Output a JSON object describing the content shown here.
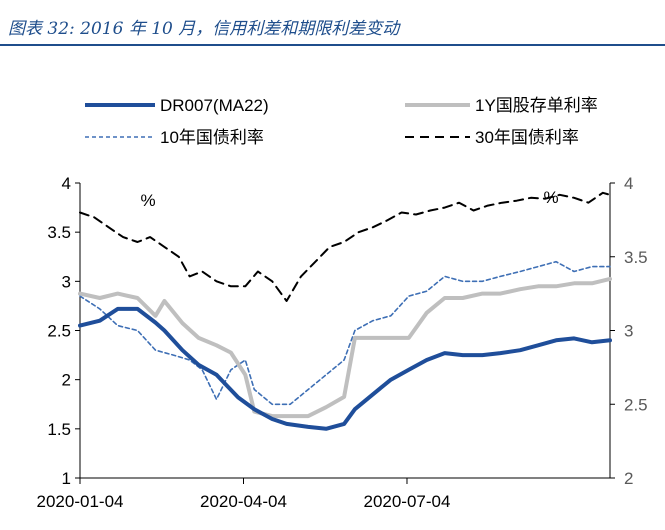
{
  "figure_title": "图表 32: 2016 年 10 月，信用利差和期限利差变动",
  "chart_data": {
    "type": "line",
    "x_tick_labels": [
      "2020-01-04",
      "2020-04-04",
      "2020-07-04"
    ],
    "y_left": {
      "range": [
        1,
        4
      ],
      "ticks": [
        "1",
        "1.5",
        "2",
        "2.5",
        "3",
        "3.5",
        "4"
      ],
      "unit_label": "%"
    },
    "y_right": {
      "range": [
        2,
        4
      ],
      "ticks": [
        "2",
        "2.5",
        "3",
        "3.5",
        "4"
      ],
      "unit_label": "%"
    },
    "grid": false,
    "legend_position": "top",
    "x_range": [
      "2020-01-04",
      "2020-10-25"
    ],
    "series": [
      {
        "name": "DR007(MA22)",
        "axis": "left",
        "style": "solid-thick",
        "color": "#1f4e9a",
        "x": [
          "2020-01-04",
          "2020-01-15",
          "2020-01-25",
          "2020-02-05",
          "2020-02-15",
          "2020-02-20",
          "2020-03-01",
          "2020-03-10",
          "2020-03-20",
          "2020-04-01",
          "2020-04-10",
          "2020-04-20",
          "2020-04-28",
          "2020-05-10",
          "2020-05-20",
          "2020-05-30",
          "2020-06-05",
          "2020-06-15",
          "2020-06-25",
          "2020-07-05",
          "2020-07-15",
          "2020-07-25",
          "2020-08-04",
          "2020-08-15",
          "2020-08-25",
          "2020-09-05",
          "2020-09-15",
          "2020-09-25",
          "2020-10-05",
          "2020-10-15",
          "2020-10-25"
        ],
        "y": [
          2.55,
          2.6,
          2.72,
          2.72,
          2.58,
          2.5,
          2.3,
          2.15,
          2.05,
          1.82,
          1.7,
          1.6,
          1.55,
          1.52,
          1.5,
          1.55,
          1.7,
          1.85,
          2.0,
          2.1,
          2.2,
          2.27,
          2.25,
          2.25,
          2.27,
          2.3,
          2.35,
          2.4,
          2.42,
          2.38,
          2.4
        ]
      },
      {
        "name": "1Y国股存单利率",
        "axis": "right",
        "style": "solid-thick",
        "color": "#bfbfbf",
        "x": [
          "2020-01-04",
          "2020-01-15",
          "2020-01-25",
          "2020-02-05",
          "2020-02-15",
          "2020-02-20",
          "2020-03-01",
          "2020-03-10",
          "2020-03-20",
          "2020-03-28",
          "2020-04-05",
          "2020-04-10",
          "2020-04-20",
          "2020-04-30",
          "2020-05-10",
          "2020-05-20",
          "2020-05-30",
          "2020-06-05",
          "2020-06-15",
          "2020-06-25",
          "2020-07-05",
          "2020-07-15",
          "2020-07-25",
          "2020-08-04",
          "2020-08-15",
          "2020-08-25",
          "2020-09-05",
          "2020-09-15",
          "2020-09-25",
          "2020-10-05",
          "2020-10-15",
          "2020-10-25"
        ],
        "y": [
          3.25,
          3.22,
          3.25,
          3.22,
          3.1,
          3.2,
          3.05,
          2.95,
          2.9,
          2.85,
          2.7,
          2.45,
          2.42,
          2.42,
          2.42,
          2.48,
          2.55,
          2.95,
          2.95,
          2.95,
          2.95,
          3.12,
          3.22,
          3.22,
          3.25,
          3.25,
          3.28,
          3.3,
          3.3,
          3.32,
          3.32,
          3.35
        ]
      },
      {
        "name": "10年国债利率",
        "axis": "left",
        "style": "dashed-thin",
        "color": "#3e6fb5",
        "x": [
          "2020-01-04",
          "2020-01-15",
          "2020-01-25",
          "2020-02-05",
          "2020-02-15",
          "2020-02-25",
          "2020-03-05",
          "2020-03-12",
          "2020-03-20",
          "2020-03-28",
          "2020-04-05",
          "2020-04-10",
          "2020-04-20",
          "2020-04-30",
          "2020-05-10",
          "2020-05-20",
          "2020-05-30",
          "2020-06-05",
          "2020-06-15",
          "2020-06-25",
          "2020-07-05",
          "2020-07-15",
          "2020-07-25",
          "2020-08-04",
          "2020-08-15",
          "2020-08-25",
          "2020-09-05",
          "2020-09-15",
          "2020-09-25",
          "2020-10-05",
          "2020-10-15",
          "2020-10-25"
        ],
        "y": [
          2.85,
          2.72,
          2.55,
          2.5,
          2.3,
          2.25,
          2.2,
          2.1,
          1.8,
          2.1,
          2.2,
          1.9,
          1.75,
          1.75,
          1.9,
          2.05,
          2.2,
          2.5,
          2.6,
          2.65,
          2.85,
          2.9,
          3.05,
          3.0,
          3.0,
          3.05,
          3.1,
          3.15,
          3.2,
          3.1,
          3.15,
          3.15
        ]
      },
      {
        "name": "30年国债利率",
        "axis": "left",
        "style": "dashed-black",
        "color": "#000000",
        "x": [
          "2020-01-04",
          "2020-01-12",
          "2020-01-20",
          "2020-01-28",
          "2020-02-05",
          "2020-02-12",
          "2020-02-20",
          "2020-02-28",
          "2020-03-05",
          "2020-03-12",
          "2020-03-20",
          "2020-03-28",
          "2020-04-05",
          "2020-04-12",
          "2020-04-20",
          "2020-04-28",
          "2020-05-06",
          "2020-05-14",
          "2020-05-22",
          "2020-05-30",
          "2020-06-07",
          "2020-06-15",
          "2020-06-23",
          "2020-07-01",
          "2020-07-09",
          "2020-07-17",
          "2020-07-25",
          "2020-08-02",
          "2020-08-10",
          "2020-08-18",
          "2020-08-26",
          "2020-09-03",
          "2020-09-11",
          "2020-09-19",
          "2020-09-27",
          "2020-10-05",
          "2020-10-13",
          "2020-10-21",
          "2020-10-25"
        ],
        "y": [
          3.7,
          3.65,
          3.55,
          3.45,
          3.4,
          3.45,
          3.35,
          3.25,
          3.05,
          3.1,
          3.0,
          2.95,
          2.95,
          3.1,
          3.0,
          2.8,
          3.05,
          3.2,
          3.35,
          3.4,
          3.5,
          3.55,
          3.62,
          3.7,
          3.68,
          3.72,
          3.75,
          3.8,
          3.72,
          3.77,
          3.8,
          3.82,
          3.85,
          3.84,
          3.88,
          3.85,
          3.8,
          3.9,
          3.88
        ]
      }
    ]
  }
}
